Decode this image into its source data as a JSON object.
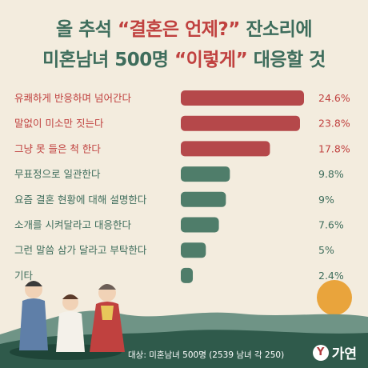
{
  "headline": {
    "line1_pre": "올 추석 ",
    "line1_hl": "“결혼은 언제?”",
    "line1_post": " 잔소리에",
    "line2_pre": "미혼남녀 500명 ",
    "line2_hl": "“이렇게”",
    "line2_post": " 대응할 것"
  },
  "chart_data": {
    "type": "bar",
    "orientation": "horizontal",
    "title": "올 추석 “결혼은 언제?” 잔소리에 미혼남녀 500명 “이렇게” 대응할 것",
    "categories": [
      "유쾌하게 반응하며 넘어간다",
      "말없이 미소만 짓는다",
      "그냥 못 들은 척 한다",
      "무표정으로 일관한다",
      "요즘 결혼 현황에 대해 설명한다",
      "소개를 시켜달라고 대응한다",
      "그런 말씀 삼가 달라고 부탁한다",
      "기타"
    ],
    "values": [
      24.6,
      23.8,
      17.8,
      9.8,
      9,
      7.6,
      5,
      2.4
    ],
    "value_labels": [
      "24.6%",
      "23.8%",
      "17.8%",
      "9.8%",
      "9%",
      "7.6%",
      "5%",
      "2.4%"
    ],
    "xlim": [
      0,
      24.6
    ],
    "top_highlight_count": 3,
    "colors": {
      "highlight": "#b5484a",
      "normal": "#4f7d6a",
      "highlight_text": "#c0413f",
      "normal_text": "#3e6d5c"
    },
    "grid": false,
    "legend": "none"
  },
  "footer": {
    "note": "대상: 미혼남녀 500명 (2539 남녀 각 250)",
    "brand_mark": "Y",
    "brand_name": "가연"
  }
}
